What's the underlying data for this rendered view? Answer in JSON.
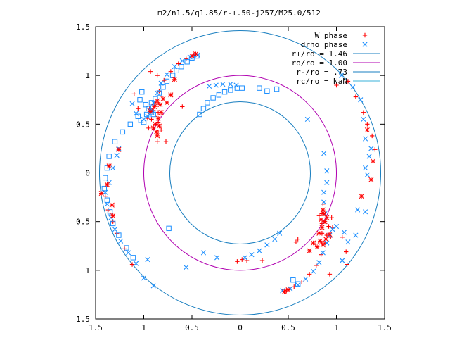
{
  "chart_data": {
    "type": "scatter",
    "title": "m2/n1.5/q1.85/r-+.50-j257/M25.0/512",
    "xlabel": "",
    "ylabel": "",
    "xlim": [
      -1.5,
      1.5
    ],
    "ylim": [
      -1.5,
      1.5
    ],
    "x_ticks": [
      -1.5,
      -1,
      -0.5,
      0,
      0.5,
      1,
      1.5
    ],
    "x_tick_labels": [
      "1.5",
      "1",
      "0.5",
      "0",
      "0.5",
      "1",
      "1.5"
    ],
    "y_ticks": [
      1.5,
      1,
      0.5,
      0,
      -0.5,
      -1,
      -1.5
    ],
    "y_tick_labels": [
      "1.5",
      "1",
      "0.5",
      "0",
      "0.5",
      "1",
      "1.5"
    ],
    "grid": false,
    "legend_position": "top-right",
    "colors": {
      "w_phase": "#ff0000",
      "drho_phase": "#1e90ff",
      "r_plus": "#1a7fc0",
      "r0": "#b000b0",
      "r_minus": "#1a7fc0",
      "rc": "#3ab0d8",
      "axis": "#000000"
    },
    "legend": [
      {
        "label": "W phase",
        "marker": "plus",
        "color": "#ff0000"
      },
      {
        "label": "drho phase",
        "marker": "cross",
        "color": "#1e90ff"
      },
      {
        "label": "r+/ro = 1.46",
        "marker": "line",
        "color": "#1a7fc0"
      },
      {
        "label": "ro/ro = 1.00",
        "marker": "line",
        "color": "#b000b0"
      },
      {
        "label": "r-/ro = .73",
        "marker": "line",
        "color": "#1a7fc0"
      },
      {
        "label": "rc/ro = NaN",
        "marker": "line",
        "color": "#3ab0d8"
      }
    ],
    "circles": [
      {
        "name": "r+/ro",
        "radius": 1.46,
        "color": "#1a7fc0"
      },
      {
        "name": "ro/ro",
        "radius": 1.0,
        "color": "#b000b0"
      },
      {
        "name": "r-/ro",
        "radius": 0.73,
        "color": "#1a7fc0"
      }
    ],
    "series": [
      {
        "name": "W phase",
        "marker": "plus",
        "color": "#ff0000",
        "points": [
          [
            -0.48,
            1.21
          ],
          [
            -0.56,
            1.17
          ],
          [
            -0.64,
            1.12
          ],
          [
            -0.72,
            1.04
          ],
          [
            -0.79,
            0.95
          ],
          [
            -0.84,
            0.84
          ],
          [
            -0.88,
            0.72
          ],
          [
            -0.9,
            0.64
          ],
          [
            -0.92,
            0.55
          ],
          [
            -0.95,
            0.46
          ],
          [
            -0.96,
            0.56
          ],
          [
            -0.94,
            0.66
          ],
          [
            -0.86,
            0.72
          ],
          [
            -0.85,
            0.62
          ],
          [
            -0.85,
            0.52
          ],
          [
            -0.85,
            0.42
          ],
          [
            -0.86,
            0.32
          ],
          [
            -0.82,
            0.44
          ],
          [
            -0.77,
            0.32
          ],
          [
            -0.6,
            0.68
          ],
          [
            -0.86,
            1.0
          ],
          [
            -1.06,
            0.66
          ],
          [
            -1.1,
            0.81
          ],
          [
            -0.93,
            1.04
          ],
          [
            0.48,
            -1.21
          ],
          [
            0.56,
            -1.17
          ],
          [
            0.64,
            -1.12
          ],
          [
            0.72,
            -1.04
          ],
          [
            0.79,
            -0.95
          ],
          [
            0.84,
            -0.84
          ],
          [
            0.88,
            -0.72
          ],
          [
            0.9,
            -0.64
          ],
          [
            0.92,
            -0.55
          ],
          [
            0.95,
            -0.46
          ],
          [
            0.96,
            -0.56
          ],
          [
            0.94,
            -0.66
          ],
          [
            0.86,
            -0.72
          ],
          [
            0.85,
            -0.62
          ],
          [
            0.85,
            -0.52
          ],
          [
            0.85,
            -0.42
          ],
          [
            0.86,
            -0.32
          ],
          [
            0.82,
            -0.44
          ],
          [
            0.6,
            -0.68
          ],
          [
            1.06,
            -0.66
          ],
          [
            1.1,
            -0.81
          ],
          [
            0.93,
            -1.04
          ],
          [
            -0.03,
            -0.91
          ],
          [
            0.02,
            -0.89
          ],
          [
            0.07,
            -0.9
          ],
          [
            0.23,
            -0.9
          ],
          [
            0.58,
            -0.71
          ],
          [
            1.11,
            -0.94
          ],
          [
            1.0,
            0.9
          ],
          [
            -1.4,
            -0.24
          ],
          [
            -1.37,
            -0.38
          ],
          [
            -1.32,
            -0.5
          ],
          [
            -1.28,
            -0.62
          ],
          [
            -1.2,
            -0.78
          ],
          [
            -1.12,
            -0.94
          ],
          [
            1.4,
            0.24
          ],
          [
            1.37,
            0.38
          ],
          [
            1.32,
            0.5
          ],
          [
            1.28,
            0.62
          ],
          [
            1.2,
            0.78
          ],
          [
            1.12,
            0.94
          ]
        ]
      },
      {
        "name": "drho phase",
        "marker": "cross",
        "color": "#1e90ff",
        "points": [
          [
            -0.44,
            1.21
          ],
          [
            -0.52,
            1.19
          ],
          [
            -0.6,
            1.15
          ],
          [
            -0.68,
            1.09
          ],
          [
            -0.76,
            1.01
          ],
          [
            -0.82,
            0.92
          ],
          [
            -0.86,
            0.82
          ],
          [
            -0.9,
            0.72
          ],
          [
            -0.93,
            0.64
          ],
          [
            -0.96,
            0.58
          ],
          [
            -1.0,
            0.55
          ],
          [
            -1.08,
            0.61
          ],
          [
            -1.12,
            0.71
          ],
          [
            -0.32,
            0.89
          ],
          [
            -0.25,
            0.9
          ],
          [
            -0.18,
            0.91
          ],
          [
            -0.1,
            0.91
          ],
          [
            -0.04,
            0.9
          ],
          [
            0.44,
            -1.21
          ],
          [
            0.52,
            -1.19
          ],
          [
            0.6,
            -1.15
          ],
          [
            0.68,
            -1.09
          ],
          [
            0.76,
            -1.01
          ],
          [
            0.82,
            -0.92
          ],
          [
            0.86,
            -0.82
          ],
          [
            0.9,
            -0.72
          ],
          [
            0.93,
            -0.64
          ],
          [
            0.96,
            -0.58
          ],
          [
            1.0,
            -0.55
          ],
          [
            1.08,
            -0.61
          ],
          [
            1.12,
            -0.71
          ],
          [
            0.05,
            -0.87
          ],
          [
            0.12,
            -0.84
          ],
          [
            0.2,
            -0.8
          ],
          [
            0.28,
            -0.74
          ],
          [
            0.36,
            -0.68
          ],
          [
            0.41,
            -0.62
          ],
          [
            0.87,
            -0.3
          ],
          [
            0.88,
            -0.42
          ],
          [
            0.88,
            -0.5
          ],
          [
            0.87,
            -0.2
          ],
          [
            0.9,
            -0.1
          ],
          [
            0.9,
            0.02
          ],
          [
            0.87,
            0.2
          ],
          [
            0.7,
            0.55
          ],
          [
            1.06,
            -0.9
          ],
          [
            1.2,
            -0.64
          ],
          [
            -0.24,
            -0.87
          ],
          [
            -0.38,
            -0.82
          ],
          [
            -1.0,
            -1.08
          ],
          [
            -0.9,
            -1.16
          ],
          [
            1.3,
            0.35
          ],
          [
            1.34,
            0.17
          ],
          [
            1.28,
            0.55
          ],
          [
            1.25,
            0.75
          ],
          [
            1.17,
            0.88
          ],
          [
            1.05,
            1.0
          ],
          [
            1.3,
            0.05
          ],
          [
            1.32,
            -0.02
          ],
          [
            1.36,
            0.25
          ],
          [
            1.22,
            -0.38
          ],
          [
            1.3,
            -0.4
          ],
          [
            -1.4,
            -0.2
          ],
          [
            -1.38,
            -0.32
          ],
          [
            -1.34,
            -0.46
          ],
          [
            -1.3,
            -0.58
          ],
          [
            -1.24,
            -0.7
          ],
          [
            -1.16,
            -0.82
          ],
          [
            -1.08,
            -0.93
          ],
          [
            -1.36,
            -0.1
          ],
          [
            -1.32,
            0.05
          ],
          [
            -1.28,
            0.18
          ],
          [
            -1.26,
            0.25
          ],
          [
            -0.96,
            -0.89
          ],
          [
            -0.56,
            -0.97
          ]
        ]
      },
      {
        "name": "drho phase (box markers)",
        "marker": "box",
        "color": "#1e90ff",
        "points": [
          [
            -1.0,
            0.52
          ],
          [
            -1.03,
            0.54
          ],
          [
            -1.06,
            0.58
          ],
          [
            -0.97,
            0.6
          ],
          [
            -0.95,
            0.66
          ],
          [
            -0.92,
            0.72
          ],
          [
            -0.88,
            0.76
          ],
          [
            -0.84,
            0.82
          ],
          [
            -0.8,
            0.88
          ],
          [
            -0.76,
            0.94
          ],
          [
            -0.7,
            1.0
          ],
          [
            -0.66,
            1.05
          ],
          [
            -0.61,
            1.09
          ],
          [
            -0.55,
            1.14
          ],
          [
            -0.5,
            1.18
          ],
          [
            -0.45,
            1.2
          ],
          [
            -0.42,
            0.6
          ],
          [
            -0.38,
            0.66
          ],
          [
            -0.34,
            0.72
          ],
          [
            -0.28,
            0.77
          ],
          [
            -0.22,
            0.8
          ],
          [
            -0.16,
            0.83
          ],
          [
            -0.1,
            0.85
          ],
          [
            -0.03,
            0.87
          ],
          [
            0.02,
            0.87
          ],
          [
            -0.9,
            0.6
          ],
          [
            -0.92,
            0.62
          ],
          [
            -0.98,
            0.7
          ],
          [
            -1.04,
            0.75
          ],
          [
            -1.02,
            0.83
          ],
          [
            -1.14,
            0.5
          ],
          [
            -1.22,
            0.42
          ],
          [
            -1.3,
            0.32
          ],
          [
            -1.36,
            0.17
          ],
          [
            -1.38,
            0.05
          ],
          [
            -1.4,
            -0.05
          ],
          [
            -1.41,
            -0.16
          ],
          [
            -1.38,
            -0.28
          ],
          [
            -1.35,
            -0.4
          ],
          [
            -1.32,
            -0.52
          ],
          [
            -1.26,
            -0.64
          ],
          [
            -1.18,
            -0.77
          ],
          [
            -1.11,
            -0.87
          ],
          [
            -0.74,
            -0.57
          ],
          [
            0.2,
            0.87
          ],
          [
            0.28,
            0.84
          ],
          [
            0.38,
            0.86
          ],
          [
            0.55,
            -1.1
          ],
          [
            0.6,
            -1.14
          ]
        ]
      },
      {
        "name": "W phase (star markers)",
        "marker": "star",
        "color": "#ff0000",
        "points": [
          [
            -0.93,
            0.63
          ],
          [
            -0.89,
            0.68
          ],
          [
            -0.86,
            0.74
          ],
          [
            -0.83,
            0.7
          ],
          [
            -0.82,
            0.62
          ],
          [
            -0.85,
            0.56
          ],
          [
            -0.88,
            0.5
          ],
          [
            -0.9,
            0.46
          ],
          [
            -0.87,
            0.42
          ],
          [
            -0.86,
            0.38
          ],
          [
            -0.84,
            0.48
          ],
          [
            -0.8,
            0.76
          ],
          [
            -0.76,
            0.72
          ],
          [
            -0.72,
            0.8
          ],
          [
            -0.68,
            0.96
          ],
          [
            -1.26,
            0.24
          ],
          [
            -1.36,
            0.07
          ],
          [
            -1.38,
            -0.12
          ],
          [
            -1.44,
            -0.21
          ],
          [
            -1.33,
            -0.33
          ],
          [
            -1.32,
            -0.44
          ],
          [
            -0.5,
            1.2
          ],
          [
            -0.46,
            1.22
          ],
          [
            0.93,
            -0.63
          ],
          [
            0.89,
            -0.68
          ],
          [
            0.86,
            -0.74
          ],
          [
            0.83,
            -0.7
          ],
          [
            0.82,
            -0.62
          ],
          [
            0.85,
            -0.56
          ],
          [
            0.88,
            -0.5
          ],
          [
            0.9,
            -0.46
          ],
          [
            0.87,
            -0.42
          ],
          [
            0.86,
            -0.38
          ],
          [
            0.84,
            -0.48
          ],
          [
            0.8,
            -0.76
          ],
          [
            0.76,
            -0.72
          ],
          [
            0.72,
            -0.8
          ],
          [
            0.5,
            -1.2
          ],
          [
            0.46,
            -1.22
          ],
          [
            1.26,
            -0.24
          ],
          [
            1.36,
            -0.07
          ],
          [
            1.38,
            0.12
          ],
          [
            1.32,
            0.44
          ]
        ]
      }
    ]
  }
}
